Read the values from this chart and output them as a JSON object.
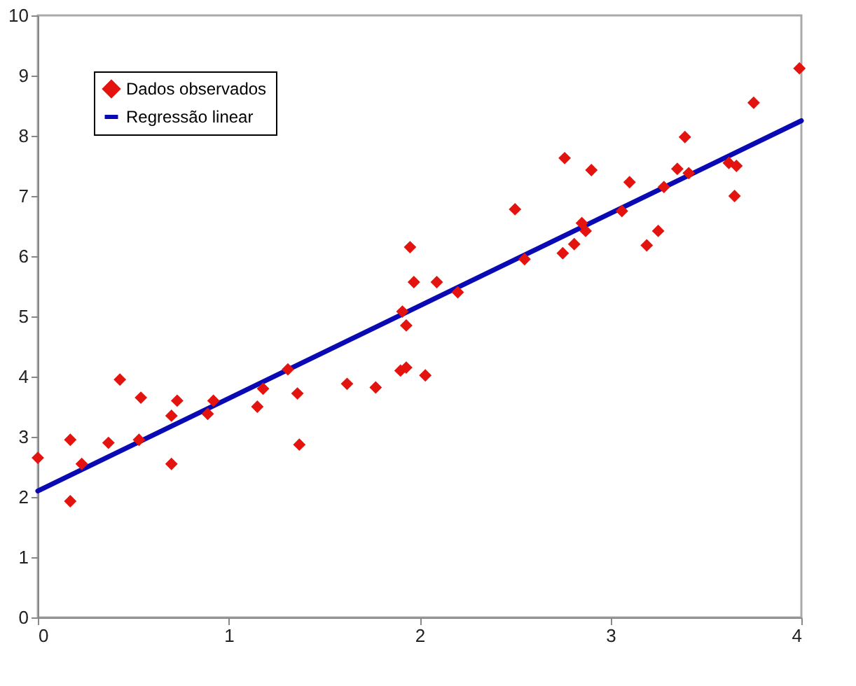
{
  "chart_data": {
    "type": "scatter",
    "xlim": [
      0,
      4
    ],
    "xticks": [
      0,
      1,
      2,
      3,
      4
    ],
    "ylim": [
      0,
      10
    ],
    "yticks": [
      0,
      1,
      2,
      3,
      4,
      5,
      6,
      7,
      8,
      9,
      10
    ],
    "grid": false,
    "legend": "top left",
    "series": [
      {
        "name": "Dados observados",
        "type": "scatter",
        "marker": "diamond",
        "color": "#e3140f",
        "x": [
          0,
          0.17,
          0.17,
          0.23,
          0.37,
          0.43,
          0.53,
          0.54,
          0.7,
          0.7,
          0.73,
          0.89,
          0.92,
          1.15,
          1.18,
          1.31,
          1.36,
          1.37,
          1.62,
          1.77,
          1.9,
          1.93,
          2.03,
          1.91,
          1.93,
          1.95,
          1.97,
          2.09,
          2.2,
          2.5,
          2.55,
          2.75,
          2.76,
          2.81,
          2.85,
          2.87,
          2.9,
          3.06,
          3.1,
          3.19,
          3.25,
          3.28,
          3.35,
          3.39,
          3.41,
          3.62,
          3.65,
          3.66,
          3.75,
          3.99
        ],
        "values": [
          2.65,
          1.93,
          2.95,
          2.55,
          2.9,
          3.95,
          2.95,
          3.65,
          2.55,
          3.35,
          3.6,
          3.38,
          3.6,
          3.5,
          3.8,
          4.12,
          3.72,
          2.87,
          3.88,
          3.82,
          4.1,
          4.15,
          4.02,
          5.08,
          4.85,
          6.15,
          5.57,
          5.57,
          5.4,
          6.78,
          5.95,
          6.05,
          7.63,
          6.2,
          6.55,
          6.42,
          7.43,
          6.75,
          7.23,
          6.18,
          6.42,
          7.15,
          7.45,
          7.98,
          7.38,
          7.55,
          7.0,
          7.5,
          8.55,
          9.12
        ]
      },
      {
        "name": "Regressão linear",
        "type": "line",
        "line_style": "solid",
        "color": "#0a0ab4",
        "x": [
          0,
          4
        ],
        "values": [
          2.1,
          8.25
        ]
      }
    ]
  }
}
